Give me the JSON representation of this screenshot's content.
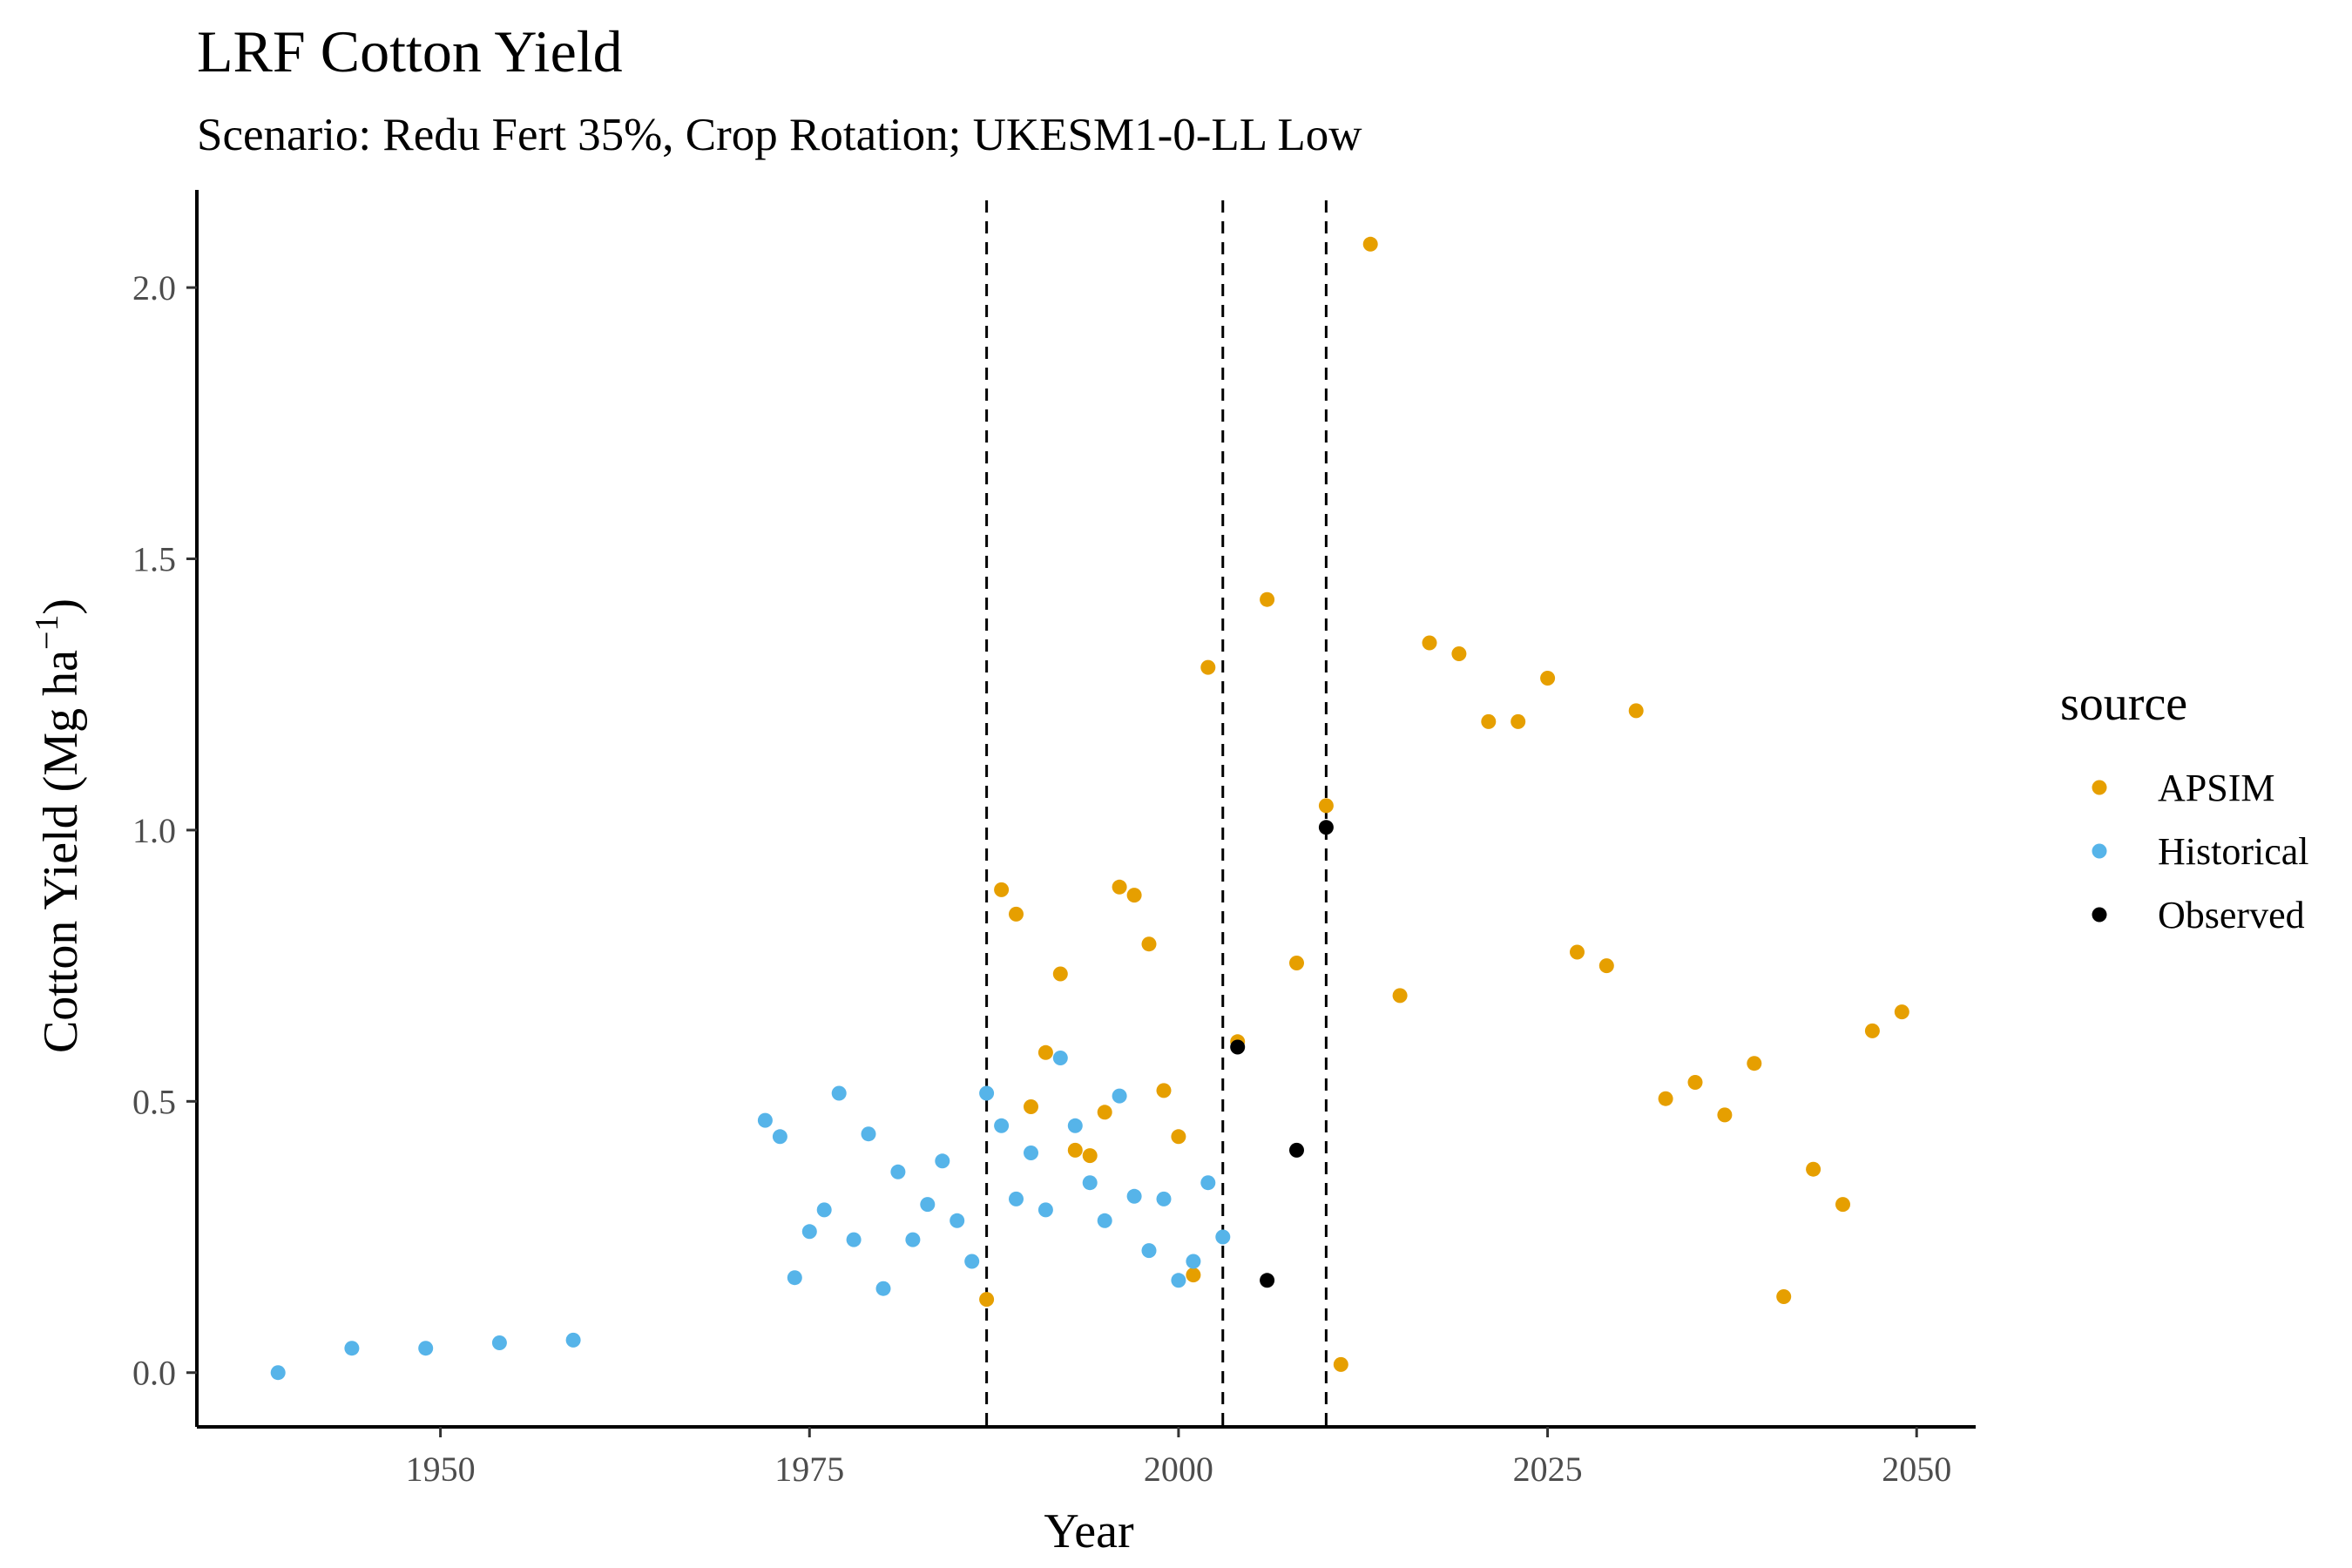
{
  "chart_data": {
    "type": "scatter",
    "title": "LRF Cotton Yield",
    "subtitle": "Scenario: Redu Fert 35%, Crop Rotation; UKESM1-0-LL Low",
    "xlabel": "Year",
    "ylabel_main": "Cotton Yield (Mg ha",
    "ylabel_sup": "−1",
    "ylabel_close": ")",
    "xlim": [
      1933.5,
      2054
    ],
    "ylim": [
      -0.1,
      2.18
    ],
    "x_ticks": [
      1950,
      1975,
      2000,
      2025,
      2050
    ],
    "y_ticks": [
      0.0,
      0.5,
      1.0,
      1.5,
      2.0
    ],
    "y_tick_labels": [
      "0.0",
      "0.5",
      "1.0",
      "1.5",
      "2.0"
    ],
    "vlines": [
      1987,
      2003,
      2010
    ],
    "legend": {
      "title": "source",
      "position": "right"
    },
    "grid": false,
    "series": [
      {
        "name": "APSIM",
        "color": "#E69F00",
        "points": [
          [
            1987,
            0.135
          ],
          [
            1988,
            0.89
          ],
          [
            1989,
            0.845
          ],
          [
            1990,
            0.49
          ],
          [
            1991,
            0.59
          ],
          [
            1992,
            0.735
          ],
          [
            1993,
            0.41
          ],
          [
            1994,
            0.4
          ],
          [
            1995,
            0.48
          ],
          [
            1996,
            0.895
          ],
          [
            1997,
            0.88
          ],
          [
            1998,
            0.79
          ],
          [
            1999,
            0.52
          ],
          [
            2000,
            0.435
          ],
          [
            2001,
            0.18
          ],
          [
            2002,
            1.3
          ],
          [
            2004,
            0.61
          ],
          [
            2006,
            1.425
          ],
          [
            2008,
            0.755
          ],
          [
            2010,
            1.045
          ],
          [
            2011,
            0.015
          ],
          [
            2013,
            2.08
          ],
          [
            2015,
            0.695
          ],
          [
            2017,
            1.345
          ],
          [
            2019,
            1.325
          ],
          [
            2021,
            1.2
          ],
          [
            2023,
            1.2
          ],
          [
            2025,
            1.28
          ],
          [
            2027,
            0.775
          ],
          [
            2029,
            0.75
          ],
          [
            2031,
            1.22
          ],
          [
            2033,
            0.505
          ],
          [
            2035,
            0.535
          ],
          [
            2037,
            0.475
          ],
          [
            2039,
            0.57
          ],
          [
            2041,
            0.14
          ],
          [
            2043,
            0.375
          ],
          [
            2045,
            0.31
          ],
          [
            2047,
            0.63
          ],
          [
            2049,
            0.665
          ]
        ]
      },
      {
        "name": "Historical",
        "color": "#56B4E9",
        "points": [
          [
            1939,
            0.0
          ],
          [
            1944,
            0.045
          ],
          [
            1949,
            0.045
          ],
          [
            1954,
            0.055
          ],
          [
            1959,
            0.06
          ],
          [
            1972,
            0.465
          ],
          [
            1973,
            0.435
          ],
          [
            1974,
            0.175
          ],
          [
            1975,
            0.26
          ],
          [
            1976,
            0.3
          ],
          [
            1977,
            0.515
          ],
          [
            1978,
            0.245
          ],
          [
            1979,
            0.44
          ],
          [
            1980,
            0.155
          ],
          [
            1981,
            0.37
          ],
          [
            1982,
            0.245
          ],
          [
            1983,
            0.31
          ],
          [
            1984,
            0.39
          ],
          [
            1985,
            0.28
          ],
          [
            1986,
            0.205
          ],
          [
            1987,
            0.515
          ],
          [
            1988,
            0.455
          ],
          [
            1989,
            0.32
          ],
          [
            1990,
            0.405
          ],
          [
            1991,
            0.3
          ],
          [
            1992,
            0.58
          ],
          [
            1993,
            0.455
          ],
          [
            1994,
            0.35
          ],
          [
            1995,
            0.28
          ],
          [
            1996,
            0.51
          ],
          [
            1997,
            0.325
          ],
          [
            1998,
            0.225
          ],
          [
            1999,
            0.32
          ],
          [
            2000,
            0.17
          ],
          [
            2001,
            0.205
          ],
          [
            2002,
            0.35
          ],
          [
            2003,
            0.25
          ]
        ]
      },
      {
        "name": "Observed",
        "color": "#000000",
        "points": [
          [
            2004,
            0.6
          ],
          [
            2006,
            0.17
          ],
          [
            2008,
            0.41
          ],
          [
            2010,
            1.005
          ]
        ]
      }
    ]
  }
}
